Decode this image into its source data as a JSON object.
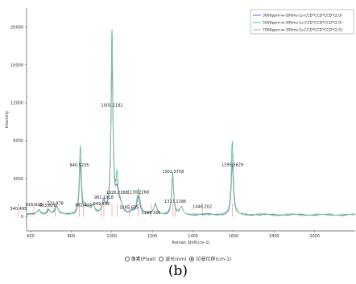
{
  "chart_data": {
    "type": "line",
    "xlabel": "Raman Shift(cm-1)",
    "ylabel": "Intensity",
    "xlim": [
      580,
      2200
    ],
    "ylim": [
      -1500,
      22000
    ],
    "x_ticks": [
      600,
      800,
      1000,
      1200,
      1400,
      1600,
      1800,
      2000
    ],
    "y_ticks": [
      0,
      4000,
      8000,
      12000,
      16000,
      20000
    ],
    "grid": false,
    "legend_position": "top-right",
    "colors": {
      "s1": "#4a6cc9",
      "s2": "#48c77a",
      "s3": "#9bbba8",
      "peak_line": "#e06a6a"
    },
    "series": [
      {
        "name": "3000ppm-w-200ms-1s-CCD*CCD*CCD*(2.0)",
        "peaks": [
          [
            640,
            480
          ],
          [
            687,
            520
          ],
          [
            727,
            880
          ],
          [
            845,
            5150
          ],
          [
            870,
            480
          ],
          [
            885,
            470
          ],
          [
            908,
            820
          ],
          [
            960,
            1250
          ],
          [
            1001,
            15400
          ],
          [
            1026,
            2100
          ],
          [
            1043,
            800
          ],
          [
            1099,
            300
          ],
          [
            1131,
            1950
          ],
          [
            1215,
            1000
          ],
          [
            1300,
            3800
          ],
          [
            1344,
            700
          ],
          [
            1594,
            5450
          ]
        ]
      },
      {
        "name": "5000ppm-w-300ms-1s-CCD*CCD*CCD*(2.0)",
        "peaks": [
          [
            640,
            500
          ],
          [
            687,
            540
          ],
          [
            727,
            900
          ],
          [
            845,
            7200
          ],
          [
            870,
            520
          ],
          [
            885,
            500
          ],
          [
            908,
            850
          ],
          [
            960,
            1300
          ],
          [
            1001,
            19300
          ],
          [
            1026,
            3400
          ],
          [
            1043,
            850
          ],
          [
            1099,
            320
          ],
          [
            1131,
            2650
          ],
          [
            1215,
            1150
          ],
          [
            1300,
            4400
          ],
          [
            1344,
            800
          ],
          [
            1594,
            7700
          ]
        ]
      },
      {
        "name": "7000ppm-w-300ms-1s-CCD*CCD*CCD*(2.0)",
        "peaks": [
          [
            640,
            520
          ],
          [
            687,
            560
          ],
          [
            727,
            920
          ],
          [
            845,
            5800
          ],
          [
            870,
            540
          ],
          [
            885,
            520
          ],
          [
            908,
            870
          ],
          [
            960,
            1350
          ],
          [
            1001,
            16600
          ],
          [
            1026,
            2500
          ],
          [
            1043,
            880
          ],
          [
            1099,
            340
          ],
          [
            1131,
            2300
          ],
          [
            1215,
            1200
          ],
          [
            1300,
            4000
          ],
          [
            1344,
            850
          ],
          [
            1594,
            6400
          ]
        ]
      }
    ],
    "peak_labels": [
      {
        "label": "540.495",
        "x": 540
      },
      {
        "label": "616.823",
        "x": 616
      },
      {
        "label": "683.621",
        "x": 683
      },
      {
        "label": "721.878",
        "x": 721
      },
      {
        "label": "840.5235",
        "x": 840
      },
      {
        "label": "861.424",
        "x": 861
      },
      {
        "label": "949.436",
        "x": 949
      },
      {
        "label": "961.1918",
        "x": 961
      },
      {
        "label": "1001.1182",
        "x": 1001
      },
      {
        "label": "1026.2268",
        "x": 1026
      },
      {
        "label": "1085.685",
        "x": 1085
      },
      {
        "label": "1130.2268",
        "x": 1130
      },
      {
        "label": "1193.166",
        "x": 1193
      },
      {
        "label": "1313.1186",
        "x": 1313
      },
      {
        "label": "1302.3758",
        "x": 1302
      },
      {
        "label": "1446.202",
        "x": 1446
      },
      {
        "label": "1595.5629",
        "x": 1595
      }
    ]
  },
  "view_options": [
    {
      "label": "像素(Pixel)",
      "checked": false
    },
    {
      "label": "波长(nm)",
      "checked": false
    },
    {
      "label": "拉曼位移(cm-1)",
      "checked": true
    }
  ],
  "caption": "(b)"
}
